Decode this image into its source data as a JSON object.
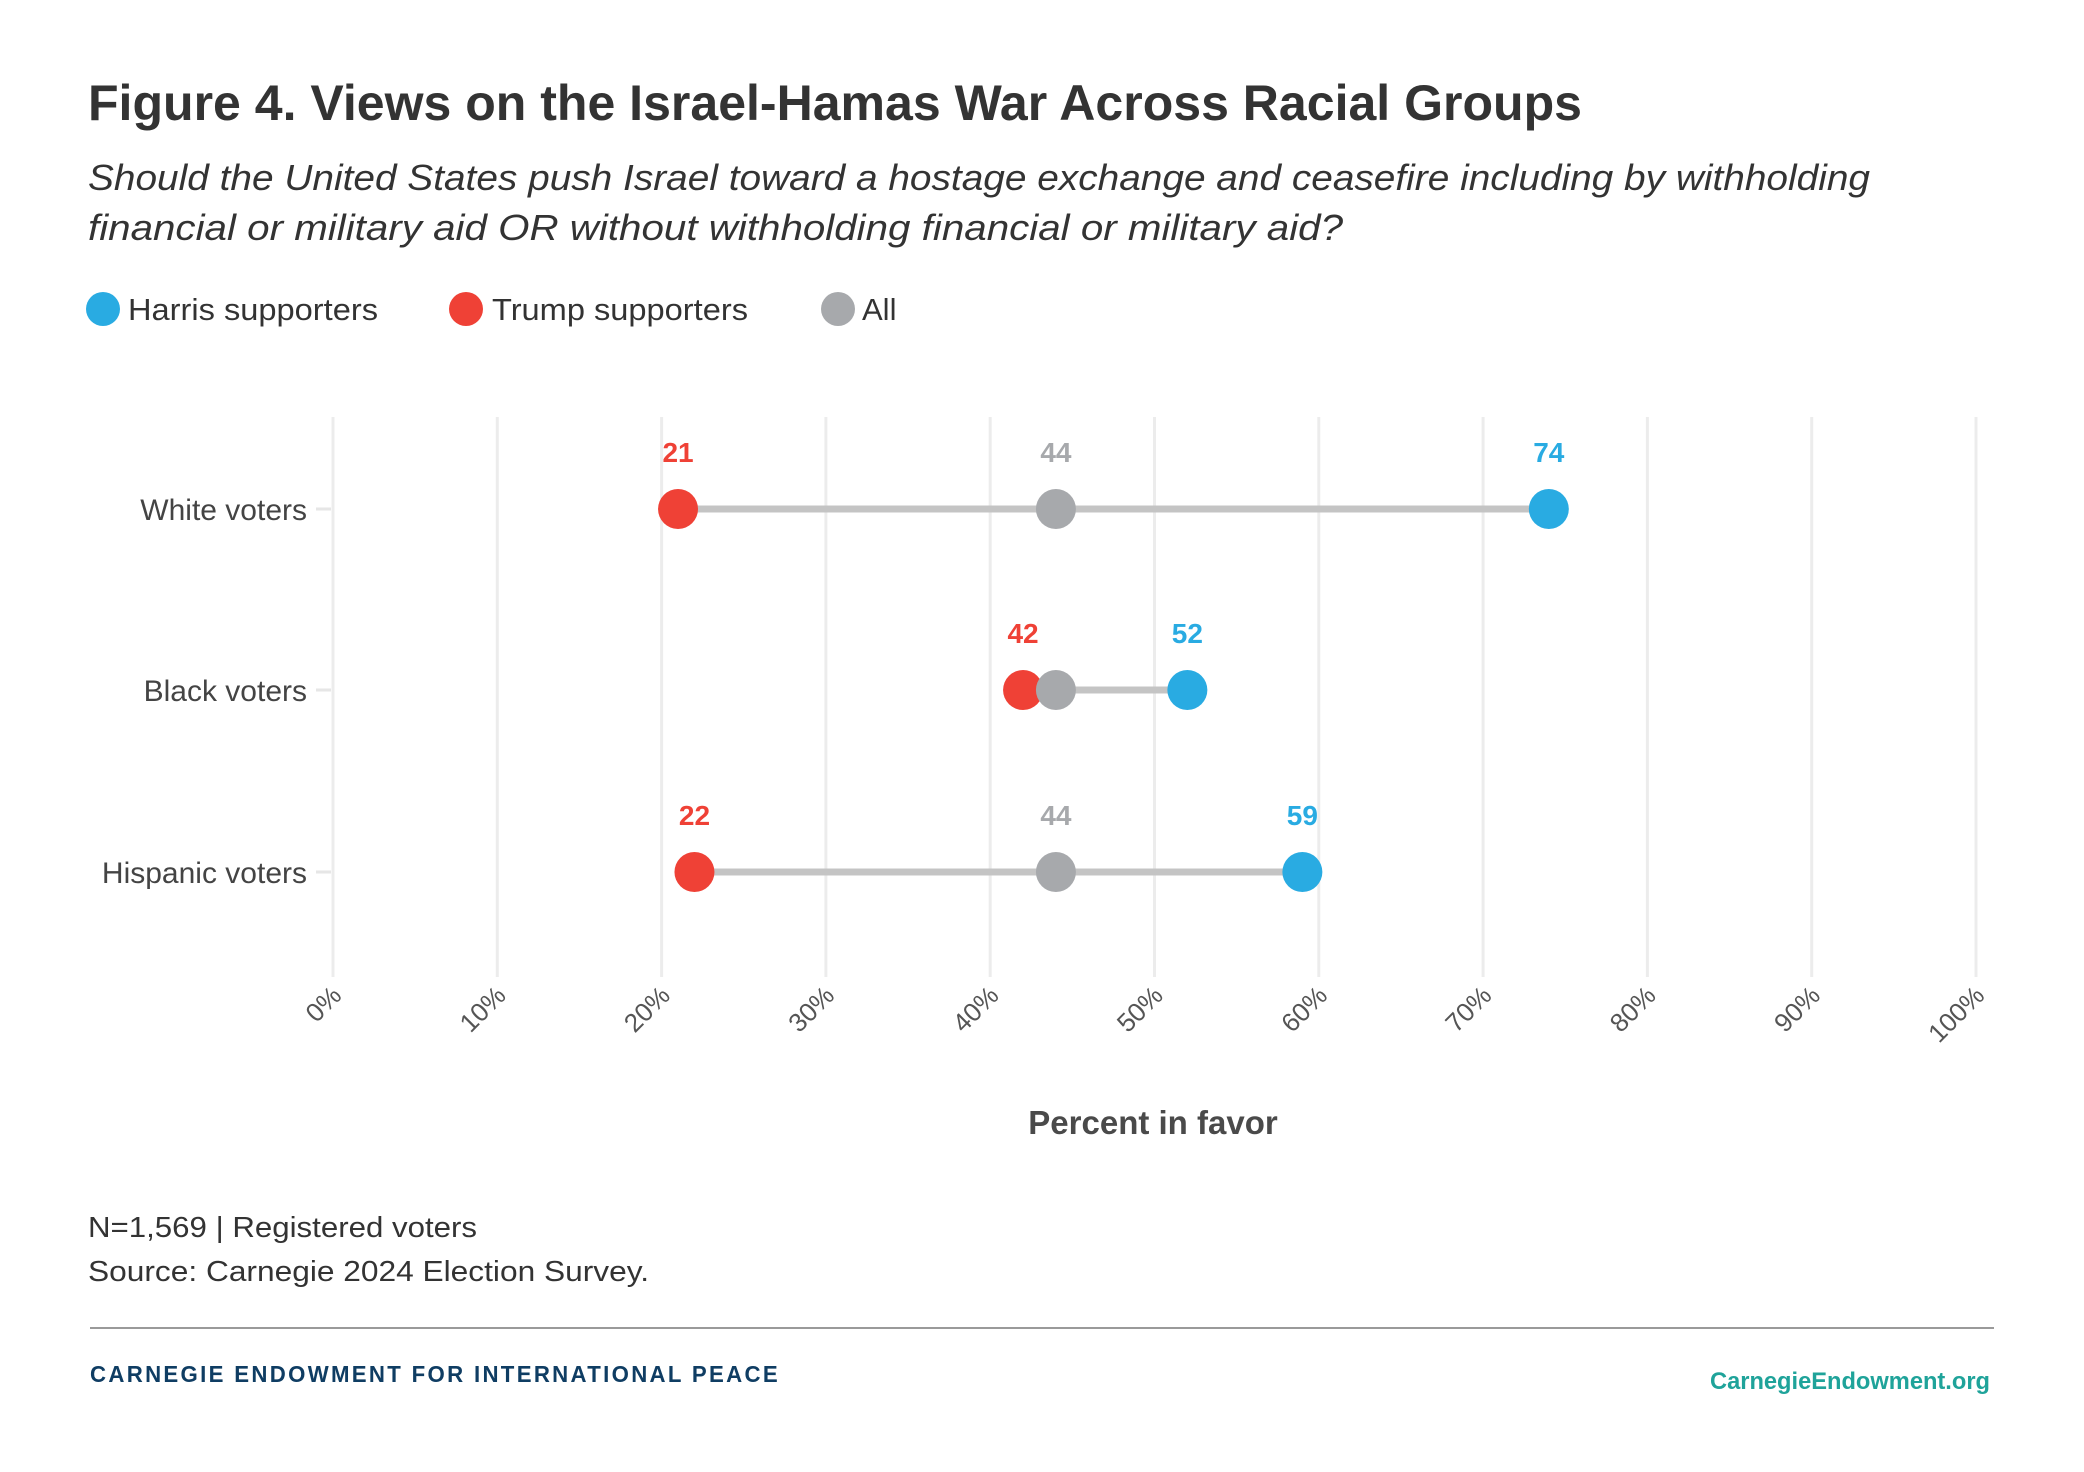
{
  "header": {
    "title": "Figure 4. Views on the Israel-Hamas War Across Racial Groups",
    "subtitle_lines": [
      "Should the United States push Israel toward a hostage exchange and ceasefire including by withholding",
      "financial or military aid OR without withholding financial or military aid?"
    ]
  },
  "legend": [
    {
      "key": "harris",
      "label": "Harris supporters",
      "color": "#29abe2"
    },
    {
      "key": "trump",
      "label": "Trump supporters",
      "color": "#ef4136"
    },
    {
      "key": "all",
      "label": "All",
      "color": "#a7a9ac"
    }
  ],
  "chart_data": {
    "type": "scatter",
    "subtype": "dumbbell",
    "title": "Figure 4. Views on the Israel-Hamas War Across Racial Groups",
    "subtitle": "Should the United States push Israel toward a hostage exchange and ceasefire including by withholding financial or military aid OR without withholding financial or military aid?",
    "xlabel": "Percent in favor",
    "ylabel": "",
    "xlim": [
      0,
      100
    ],
    "x_ticks": [
      0,
      10,
      20,
      30,
      40,
      50,
      60,
      70,
      80,
      90,
      100
    ],
    "x_tick_labels": [
      "0%",
      "10%",
      "20%",
      "30%",
      "40%",
      "50%",
      "60%",
      "70%",
      "80%",
      "90%",
      "100%"
    ],
    "grid": "vertical",
    "legend_position": "top-left",
    "categories": [
      "White voters",
      "Black voters",
      "Hispanic voters"
    ],
    "series": [
      {
        "name": "Harris supporters",
        "color": "#29abe2",
        "values": [
          74,
          52,
          59
        ],
        "labels_shown": [
          true,
          true,
          true
        ]
      },
      {
        "name": "Trump supporters",
        "color": "#ef4136",
        "values": [
          21,
          42,
          22
        ],
        "labels_shown": [
          true,
          true,
          true
        ]
      },
      {
        "name": "All",
        "color": "#a7a9ac",
        "values": [
          44,
          44,
          44
        ],
        "labels_shown": [
          true,
          false,
          true
        ]
      }
    ],
    "connector_color": "#c4c4c4"
  },
  "footer": {
    "notes": [
      "N=1,569 | Registered voters",
      "Source: Carnegie 2024 Election Survey."
    ],
    "brand": "CARNEGIE ENDOWMENT FOR INTERNATIONAL PEACE",
    "url": "CarnegieEndowment.org"
  }
}
